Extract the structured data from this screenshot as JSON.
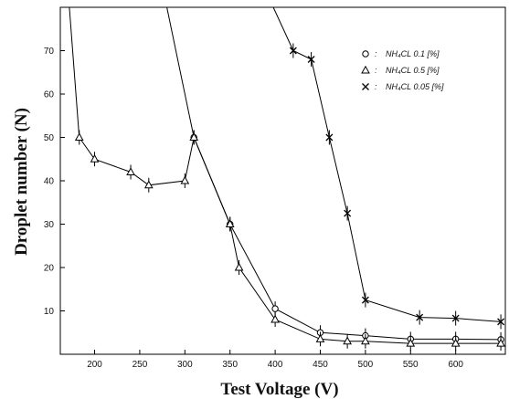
{
  "chart_data": {
    "type": "line",
    "xlabel": "Test Voltage (V)",
    "ylabel": "Droplet number (N)",
    "xlim": [
      162,
      655
    ],
    "ylim": [
      0,
      80
    ],
    "xticks": [
      200,
      250,
      300,
      350,
      400,
      450,
      500,
      550,
      600
    ],
    "yticks": [
      10,
      20,
      30,
      40,
      50,
      60,
      70
    ],
    "grid": false,
    "legend_position": "top-right",
    "series": [
      {
        "name": "NH₄CL 0.1 [%]",
        "marker": "circle",
        "points": [
          [
            280,
            80
          ],
          [
            310,
            50
          ],
          [
            350,
            30
          ],
          [
            400,
            10.5
          ],
          [
            450,
            5
          ],
          [
            500,
            4.3
          ],
          [
            550,
            3.5
          ],
          [
            600,
            3.5
          ],
          [
            650,
            3.4
          ]
        ]
      },
      {
        "name": "NH₄CL 0.5 [%]",
        "marker": "triangle",
        "points": [
          [
            172,
            80
          ],
          [
            183,
            50
          ],
          [
            200,
            45
          ],
          [
            240,
            42
          ],
          [
            260,
            39
          ],
          [
            300,
            40
          ],
          [
            310,
            50
          ],
          [
            350,
            30
          ],
          [
            360,
            20
          ],
          [
            400,
            8
          ],
          [
            450,
            3.5
          ],
          [
            480,
            3
          ],
          [
            500,
            3
          ],
          [
            550,
            2.5
          ],
          [
            600,
            2.5
          ],
          [
            650,
            2.5
          ]
        ]
      },
      {
        "name": "NH₄CL 0.05 [%]",
        "marker": "x",
        "points": [
          [
            398,
            80
          ],
          [
            420,
            70
          ],
          [
            440,
            68
          ],
          [
            460,
            50
          ],
          [
            480,
            32.5
          ],
          [
            500,
            12.5
          ],
          [
            560,
            8.5
          ],
          [
            600,
            8.3
          ],
          [
            650,
            7.5
          ]
        ]
      }
    ]
  }
}
